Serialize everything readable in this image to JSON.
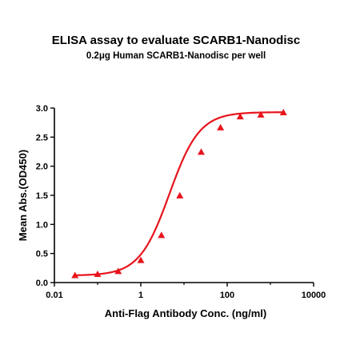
{
  "chart_data": {
    "type": "line",
    "title": "ELISA assay to evaluate SCARB1-Nanodisc",
    "subtitle": "0.2μg Human SCARB1-Nanodisc per well",
    "xlabel": "Anti-Flag Antibody Conc. (ng/ml)",
    "ylabel": "Mean Abs.(OD450)",
    "xscale": "log",
    "xlim": [
      0.01,
      10000
    ],
    "ylim": [
      0,
      3.0
    ],
    "xticks": [
      "0.01",
      "1",
      "100",
      "10000"
    ],
    "yticks": [
      "0.0",
      "0.5",
      "1.0",
      "1.5",
      "2.0",
      "2.5",
      "3.0"
    ],
    "grid": false,
    "legend": "none",
    "marker": "triangle",
    "color": "#e8141c",
    "series": [
      {
        "x": [
          0.03,
          0.1,
          0.3,
          1,
          3,
          8,
          25,
          70,
          200,
          600,
          2000
        ],
        "y": [
          0.12,
          0.14,
          0.19,
          0.38,
          0.81,
          1.49,
          2.24,
          2.66,
          2.85,
          2.88,
          2.92
        ]
      }
    ]
  }
}
